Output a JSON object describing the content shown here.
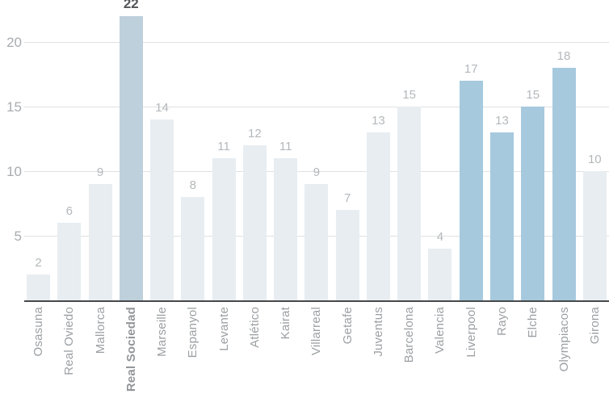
{
  "chart_data": {
    "type": "bar",
    "title": "",
    "xlabel": "",
    "ylabel": "",
    "categories": [
      "Osasuna",
      "Real Oviedo",
      "Mallorca",
      "Real Sociedad",
      "Marseille",
      "Espanyol",
      "Levante",
      "Atlético",
      "Kairat",
      "Villarreal",
      "Getafe",
      "Juventus",
      "Barcelona",
      "Valencia",
      "Liverpool",
      "Rayo",
      "Elche",
      "Olympiacos",
      "Girona"
    ],
    "values": [
      2,
      6,
      9,
      22,
      14,
      8,
      11,
      12,
      11,
      9,
      7,
      13,
      15,
      4,
      17,
      13,
      15,
      18,
      10
    ],
    "bars": [
      {
        "label": "Osasuna",
        "value": 2,
        "emphasis": "none"
      },
      {
        "label": "Real Oviedo",
        "value": 6,
        "emphasis": "none"
      },
      {
        "label": "Mallorca",
        "value": 9,
        "emphasis": "none"
      },
      {
        "label": "Real Sociedad",
        "value": 22,
        "emphasis": "primary"
      },
      {
        "label": "Marseille",
        "value": 14,
        "emphasis": "none"
      },
      {
        "label": "Espanyol",
        "value": 8,
        "emphasis": "none"
      },
      {
        "label": "Levante",
        "value": 11,
        "emphasis": "none"
      },
      {
        "label": "Atlético",
        "value": 12,
        "emphasis": "none"
      },
      {
        "label": "Kairat",
        "value": 11,
        "emphasis": "none"
      },
      {
        "label": "Villarreal",
        "value": 9,
        "emphasis": "none"
      },
      {
        "label": "Getafe",
        "value": 7,
        "emphasis": "none"
      },
      {
        "label": "Juventus",
        "value": 13,
        "emphasis": "none"
      },
      {
        "label": "Barcelona",
        "value": 15,
        "emphasis": "none"
      },
      {
        "label": "Valencia",
        "value": 4,
        "emphasis": "none"
      },
      {
        "label": "Liverpool",
        "value": 17,
        "emphasis": "secondary"
      },
      {
        "label": "Rayo",
        "value": 13,
        "emphasis": "secondary"
      },
      {
        "label": "Elche",
        "value": 15,
        "emphasis": "secondary"
      },
      {
        "label": "Olympiacos",
        "value": 18,
        "emphasis": "secondary"
      },
      {
        "label": "Girona",
        "value": 10,
        "emphasis": "secondary-none"
      }
    ],
    "yticks": [
      5,
      10,
      15,
      20
    ],
    "ylim": [
      0,
      22
    ],
    "grid": true,
    "legend": "none",
    "colors": {
      "bar_default": "#e7edf1",
      "bar_primary": "#bed0dc",
      "bar_secondary": "#a6c9de",
      "gridline": "#dfe1e2",
      "axis_line": "#47494b",
      "value_label": "#b4b8bb",
      "value_label_primary": "#54575a",
      "tick_label": "#a8acaf",
      "category_label": "#9ca0a3"
    }
  }
}
